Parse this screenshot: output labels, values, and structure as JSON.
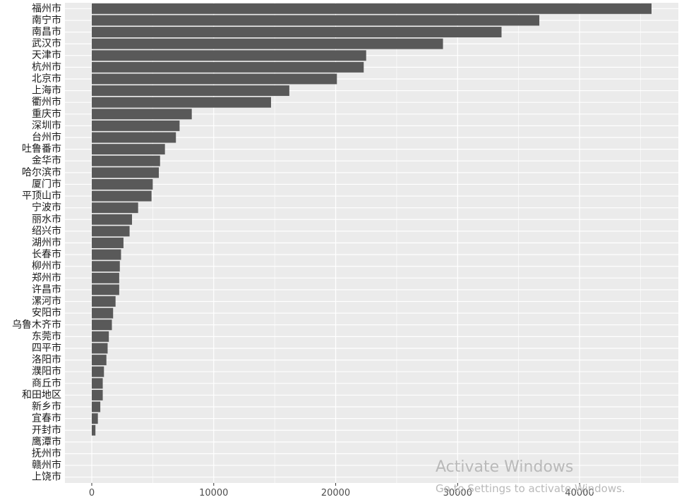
{
  "chart_data": {
    "type": "bar",
    "orientation": "horizontal",
    "categories": [
      "福州市",
      "南宁市",
      "南昌市",
      "武汉市",
      "天津市",
      "杭州市",
      "北京市",
      "上海市",
      "衢州市",
      "重庆市",
      "深圳市",
      "台州市",
      "吐鲁番市",
      "金华市",
      "哈尔滨市",
      "厦门市",
      "平顶山市",
      "宁波市",
      "丽水市",
      "绍兴市",
      "湖州市",
      "长春市",
      "柳州市",
      "郑州市",
      "许昌市",
      "漯河市",
      "安阳市",
      "乌鲁木齐市",
      "东莞市",
      "四平市",
      "洛阳市",
      "濮阳市",
      "商丘市",
      "和田地区",
      "新乡市",
      "宜春市",
      "开封市",
      "鹰潭市",
      "抚州市",
      "赣州市",
      "上饶市"
    ],
    "values": [
      45900,
      36700,
      33600,
      28800,
      22500,
      22300,
      20100,
      16200,
      14700,
      8200,
      7200,
      6900,
      6000,
      5600,
      5500,
      5000,
      4900,
      3800,
      3300,
      3100,
      2600,
      2400,
      2300,
      2250,
      2250,
      1950,
      1750,
      1650,
      1400,
      1300,
      1200,
      1000,
      900,
      900,
      700,
      500,
      300,
      0,
      0,
      0,
      0
    ],
    "xticks": [
      "0",
      "10000",
      "20000",
      "30000",
      "40000"
    ],
    "xlim": [
      -2200,
      48100
    ],
    "xlabel": "",
    "ylabel": "",
    "title": "",
    "grid": true,
    "colors": {
      "panel": "#ebebeb",
      "bar": "#595959",
      "grid": "#ffffff",
      "text": "#4d4d4d",
      "label": "#1a1a1a"
    }
  },
  "watermark": {
    "title": "Activate Windows",
    "subtitle": "Go to Settings to activate Windows."
  }
}
